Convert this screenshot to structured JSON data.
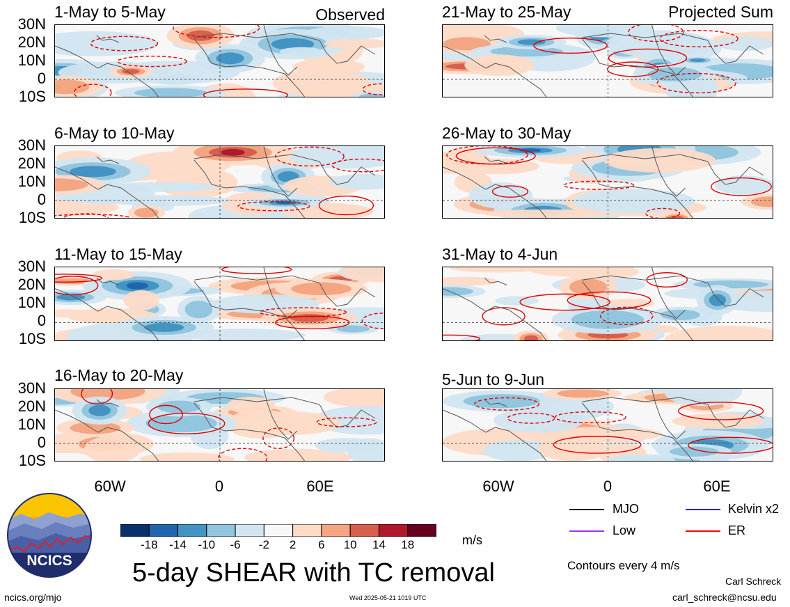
{
  "main_title": "5-day SHEAR with TC removal",
  "left_tag": "Observed",
  "right_tag": "Projected Sum",
  "panels_left": [
    {
      "title": "1-May to 5-May"
    },
    {
      "title": "6-May to 10-May"
    },
    {
      "title": "11-May to 15-May"
    },
    {
      "title": "16-May to 20-May"
    }
  ],
  "panels_right": [
    {
      "title": "21-May to 25-May"
    },
    {
      "title": "26-May to 30-May"
    },
    {
      "title": "31-May to 4-Jun"
    },
    {
      "title": "5-Jun to 9-Jun"
    }
  ],
  "lat_labels": [
    "30N",
    "20N",
    "10N",
    "0",
    "10S"
  ],
  "lon_labels": [
    "60W",
    "0",
    "60E"
  ],
  "colorbar": {
    "unit": "m/s",
    "labels": [
      "-18",
      "-14",
      "-10",
      "-6",
      "-2",
      "2",
      "6",
      "10",
      "14",
      "18"
    ],
    "colors": [
      "#08306b",
      "#2166ac",
      "#4393c3",
      "#92c5de",
      "#d1e5f0",
      "#f7f7f7",
      "#fddbc7",
      "#f4a582",
      "#d6604d",
      "#b2182b",
      "#67001f"
    ]
  },
  "legend": [
    {
      "label": "MJO",
      "color": "#000000"
    },
    {
      "label": "Kelvin x2",
      "color": "#0000ff"
    },
    {
      "label": "Low",
      "color": "#9933ff"
    },
    {
      "label": "ER",
      "color": "#ff0000"
    }
  ],
  "contour_note": "Contours every 4 m/s",
  "logo_text": "NCICS",
  "site": "ncics.org/mjo",
  "timestamp": "Wed 2025-05-21 1019 UTC",
  "author": "Carl Schreck",
  "email": "carl_schreck@ncsu.edu"
}
